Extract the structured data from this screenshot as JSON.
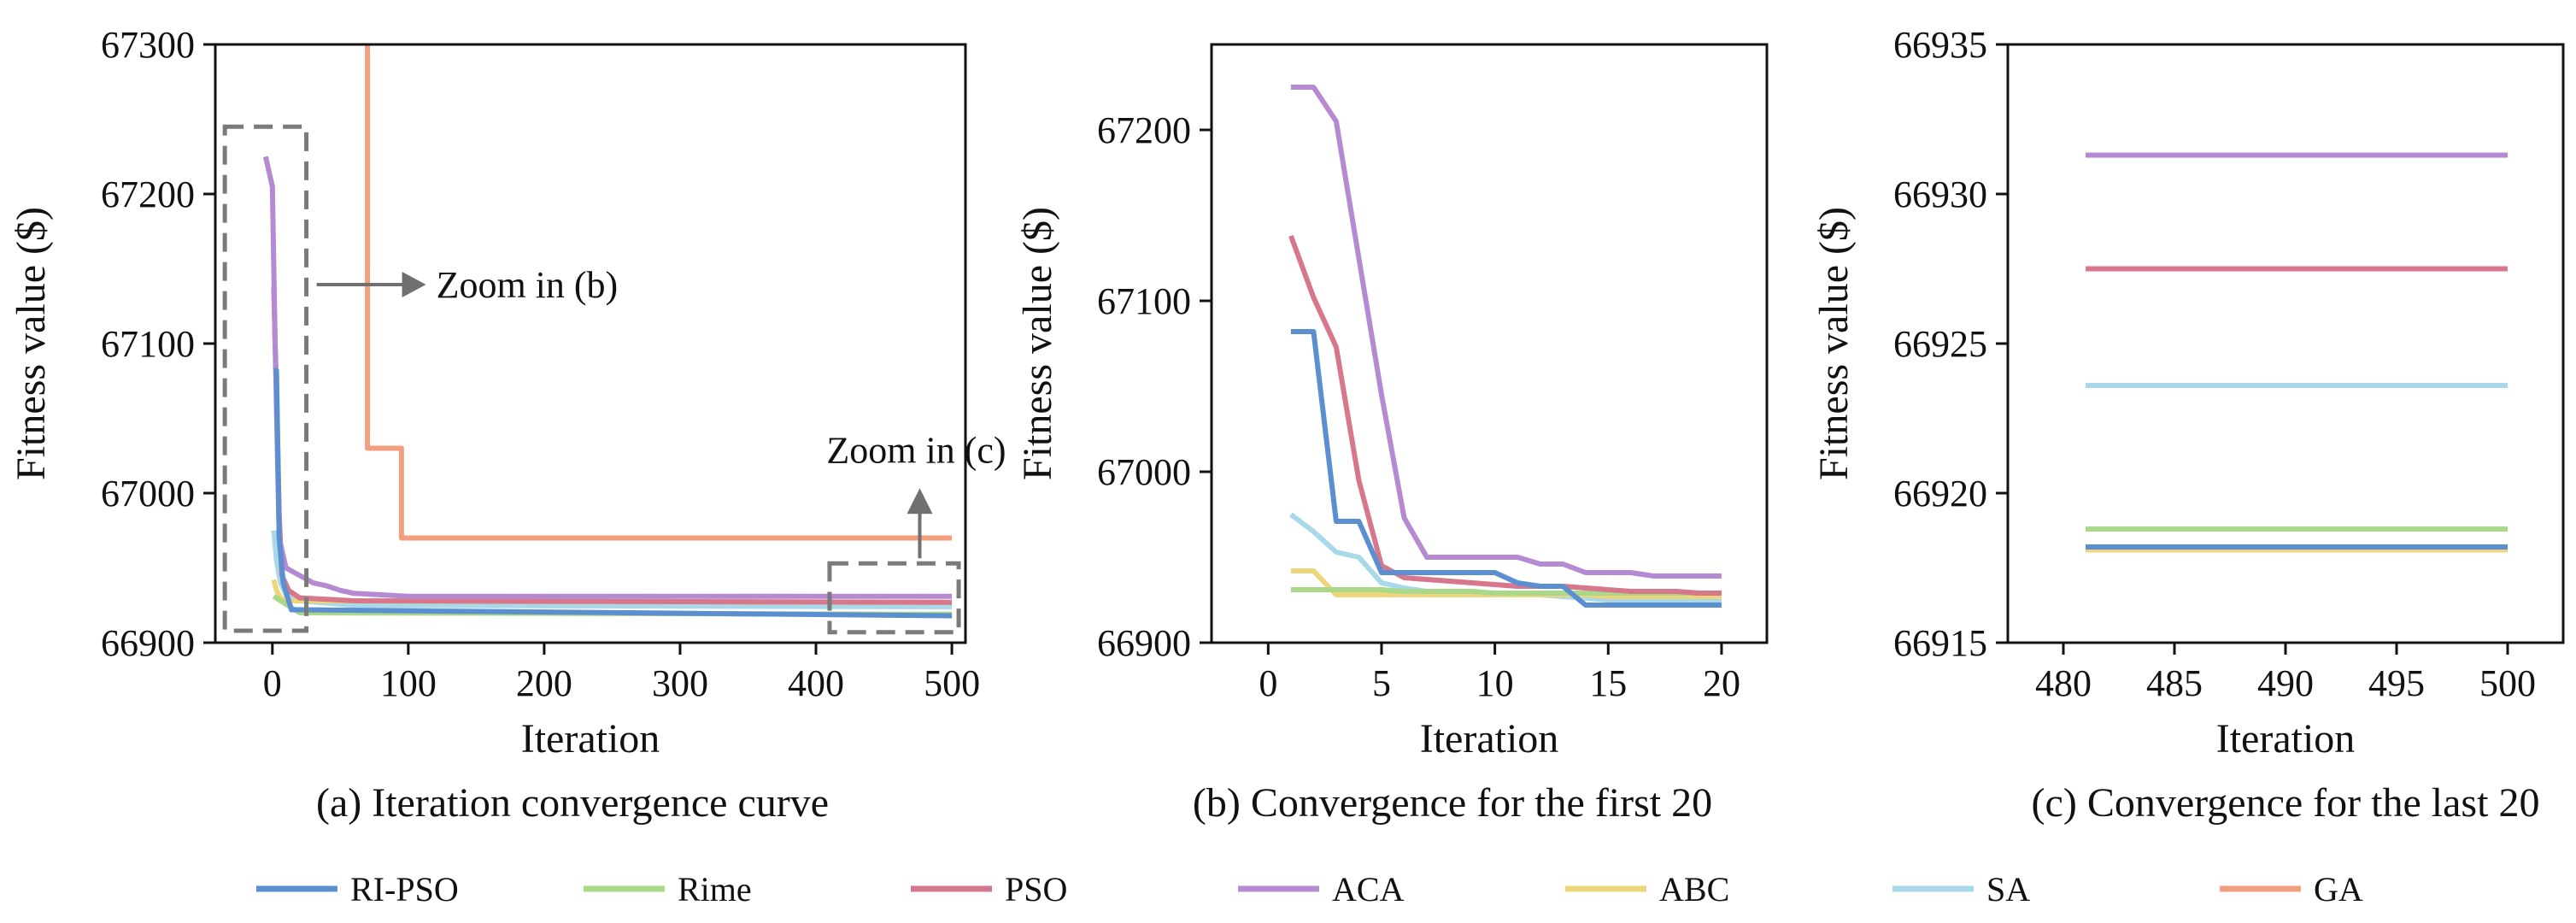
{
  "legend": {
    "items": [
      {
        "name": "RI-PSO",
        "color": "#5b8fd0"
      },
      {
        "name": "Rime",
        "color": "#a9d88a"
      },
      {
        "name": "PSO",
        "color": "#d6778c"
      },
      {
        "name": "ACA",
        "color": "#b58ad3"
      },
      {
        "name": "ABC",
        "color": "#ecd57a"
      },
      {
        "name": "SA",
        "color": "#a9d8e8"
      },
      {
        "name": "GA",
        "color": "#f19f7e"
      }
    ]
  },
  "chart_data": [
    {
      "id": "a",
      "type": "line",
      "caption": "(a) Iteration convergence curve",
      "xlabel": "Iteration",
      "ylabel": "Fitness value  ($)",
      "xlim": [
        -42,
        510
      ],
      "ylim": [
        66900,
        67300
      ],
      "xticks": [
        0,
        100,
        200,
        300,
        400,
        500
      ],
      "yticks": [
        66900,
        67000,
        67100,
        67200,
        67300
      ],
      "series": [
        {
          "name": "SA",
          "x": [
            1,
            3,
            6,
            10,
            20,
            60,
            500
          ],
          "y": [
            66975,
            66955,
            66940,
            66932,
            66928,
            66925,
            66924
          ]
        },
        {
          "name": "ABC",
          "x": [
            1,
            3,
            6,
            10,
            500
          ],
          "y": [
            66942,
            66935,
            66930,
            66928,
            66927
          ]
        },
        {
          "name": "Rime",
          "x": [
            1,
            20,
            500
          ],
          "y": [
            66931,
            66920,
            66919
          ]
        },
        {
          "name": "PSO",
          "x": [
            1,
            2,
            3,
            5,
            7,
            12,
            20,
            60,
            500
          ],
          "y": [
            67138,
            67100,
            67070,
            66985,
            66945,
            66935,
            66930,
            66928,
            66927
          ]
        },
        {
          "name": "ACA",
          "x": [
            -5,
            0,
            2,
            5,
            10,
            20,
            30,
            40,
            50,
            60,
            80,
            100,
            500
          ],
          "y": [
            67225,
            67205,
            67100,
            66970,
            66950,
            66945,
            66940,
            66938,
            66935,
            66933,
            66932,
            66931,
            66931
          ]
        },
        {
          "name": "RI-PSO",
          "x": [
            1,
            3,
            5,
            8,
            14,
            20,
            500
          ],
          "y": [
            67082,
            67082,
            66970,
            66940,
            66922,
            66922,
            66918
          ]
        },
        {
          "name": "GA",
          "x": [
            70,
            70,
            95,
            95,
            500
          ],
          "y": [
            67300,
            67030,
            67030,
            66970,
            66970
          ]
        }
      ],
      "annotations": [
        {
          "text": "Zoom in (b)",
          "zoom_x": [
            -35,
            25
          ],
          "zoom_y": [
            66908,
            67245
          ],
          "arrow": "right"
        },
        {
          "text": "Zoom in (c)",
          "zoom_x": [
            410,
            505
          ],
          "zoom_y": [
            66907,
            66953
          ],
          "arrow": "up"
        }
      ]
    },
    {
      "id": "b",
      "type": "line",
      "caption": "(b) Convergence for the first 20",
      "xlabel": "Iteration",
      "ylabel": "Fitness value  ($)",
      "xlim": [
        -2.5,
        22
      ],
      "ylim": [
        66900,
        67250
      ],
      "xticks": [
        0,
        5,
        10,
        15,
        20
      ],
      "yticks": [
        66900,
        67000,
        67100,
        67200
      ],
      "series": [
        {
          "name": "SA",
          "x": [
            1,
            2,
            3,
            4,
            5,
            6,
            7,
            8,
            9,
            10,
            11,
            12,
            13,
            14,
            15,
            16,
            17,
            18,
            19,
            20
          ],
          "y": [
            66975,
            66965,
            66953,
            66950,
            66935,
            66932,
            66930,
            66929,
            66928,
            66928,
            66928,
            66928,
            66927,
            66926,
            66925,
            66925,
            66925,
            66924,
            66924,
            66924
          ]
        },
        {
          "name": "ABC",
          "x": [
            1,
            2,
            3,
            4,
            5,
            6,
            7,
            8,
            9,
            10,
            11,
            12,
            13,
            14,
            15,
            16,
            17,
            18,
            19,
            20
          ],
          "y": [
            66942,
            66942,
            66928,
            66928,
            66928,
            66928,
            66928,
            66928,
            66928,
            66928,
            66928,
            66928,
            66928,
            66928,
            66927,
            66927,
            66927,
            66927,
            66927,
            66927
          ]
        },
        {
          "name": "Rime",
          "x": [
            1,
            2,
            3,
            4,
            5,
            6,
            7,
            8,
            9,
            10,
            11,
            12,
            13,
            14,
            15,
            16,
            17,
            18,
            19,
            20
          ],
          "y": [
            66931,
            66931,
            66931,
            66931,
            66931,
            66930,
            66930,
            66930,
            66930,
            66929,
            66929,
            66929,
            66929,
            66929,
            66929,
            66929,
            66929,
            66929,
            66929,
            66929
          ]
        },
        {
          "name": "PSO",
          "x": [
            1,
            2,
            3,
            4,
            5,
            6,
            7,
            8,
            9,
            10,
            11,
            12,
            13,
            14,
            15,
            16,
            17,
            18,
            19,
            20
          ],
          "y": [
            67138,
            67102,
            67073,
            66995,
            66945,
            66938,
            66937,
            66936,
            66935,
            66934,
            66933,
            66933,
            66933,
            66932,
            66931,
            66930,
            66930,
            66930,
            66929,
            66929
          ]
        },
        {
          "name": "ACA",
          "x": [
            1,
            2,
            3,
            4,
            5,
            6,
            7,
            8,
            9,
            10,
            11,
            12,
            13,
            14,
            15,
            16,
            17,
            18,
            19,
            20
          ],
          "y": [
            67225,
            67225,
            67205,
            67125,
            67045,
            66973,
            66950,
            66950,
            66950,
            66950,
            66950,
            66946,
            66946,
            66941,
            66941,
            66941,
            66939,
            66939,
            66939,
            66939
          ]
        },
        {
          "name": "RI-PSO",
          "x": [
            1,
            2,
            3,
            4,
            5,
            6,
            7,
            8,
            9,
            10,
            11,
            12,
            13,
            14,
            15,
            16,
            17,
            18,
            19,
            20
          ],
          "y": [
            67082,
            67082,
            66971,
            66971,
            66941,
            66941,
            66941,
            66941,
            66941,
            66941,
            66935,
            66933,
            66933,
            66922,
            66922,
            66922,
            66922,
            66922,
            66922,
            66922
          ]
        }
      ]
    },
    {
      "id": "c",
      "type": "line",
      "caption": "(c) Convergence for the last 20",
      "xlabel": "Iteration",
      "ylabel": "Fitness value  ($)",
      "xlim": [
        477.5,
        502.5
      ],
      "ylim": [
        66915,
        66935
      ],
      "xticks": [
        480,
        485,
        490,
        495,
        500
      ],
      "yticks": [
        66915,
        66920,
        66925,
        66930,
        66935
      ],
      "series": [
        {
          "name": "ABC",
          "x": [
            481,
            500
          ],
          "y": [
            66918.1,
            66918.1
          ]
        },
        {
          "name": "RI-PSO",
          "x": [
            481,
            500
          ],
          "y": [
            66918.2,
            66918.2
          ]
        },
        {
          "name": "Rime",
          "x": [
            481,
            500
          ],
          "y": [
            66918.8,
            66918.8
          ]
        },
        {
          "name": "SA",
          "x": [
            481,
            500
          ],
          "y": [
            66923.6,
            66923.6
          ]
        },
        {
          "name": "PSO",
          "x": [
            481,
            500
          ],
          "y": [
            66927.5,
            66927.5
          ]
        },
        {
          "name": "ACA",
          "x": [
            481,
            500
          ],
          "y": [
            66931.3,
            66931.3
          ]
        }
      ]
    }
  ]
}
